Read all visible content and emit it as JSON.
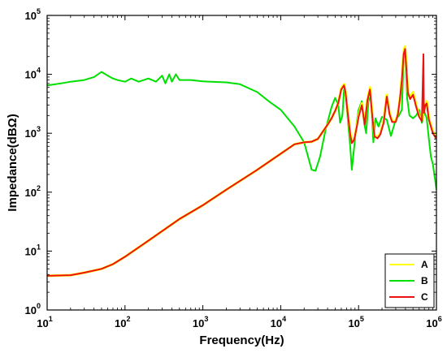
{
  "chart_data": {
    "type": "line",
    "xlabel": "Frequency(Hz)",
    "ylabel": "Impedance(dBΩ)",
    "xscale": "log",
    "yscale": "log",
    "xlim": [
      10,
      1000000
    ],
    "ylim": [
      1,
      100000
    ],
    "x_ticks": [
      {
        "base": "10",
        "exp": "1"
      },
      {
        "base": "10",
        "exp": "2"
      },
      {
        "base": "10",
        "exp": "3"
      },
      {
        "base": "10",
        "exp": "4"
      },
      {
        "base": "10",
        "exp": "5"
      },
      {
        "base": "10",
        "exp": "6"
      }
    ],
    "y_ticks": [
      {
        "base": "10",
        "exp": "0"
      },
      {
        "base": "10",
        "exp": "1"
      },
      {
        "base": "10",
        "exp": "2"
      },
      {
        "base": "10",
        "exp": "3"
      },
      {
        "base": "10",
        "exp": "4"
      },
      {
        "base": "10",
        "exp": "5"
      }
    ],
    "grid": false,
    "legend_position": "bottom-right",
    "series": [
      {
        "name": "A",
        "color": "#ffff00",
        "points": [
          [
            10,
            3.8
          ],
          [
            20,
            3.9
          ],
          [
            30,
            4.3
          ],
          [
            50,
            5
          ],
          [
            70,
            6
          ],
          [
            100,
            8
          ],
          [
            200,
            15
          ],
          [
            500,
            35
          ],
          [
            1000,
            60
          ],
          [
            2000,
            110
          ],
          [
            5000,
            240
          ],
          [
            10000,
            450
          ],
          [
            15000,
            650
          ],
          [
            20000,
            700
          ],
          [
            25000,
            720
          ],
          [
            30000,
            800
          ],
          [
            40000,
            1400
          ],
          [
            45000,
            1800
          ],
          [
            50000,
            2400
          ],
          [
            55000,
            3300
          ],
          [
            60000,
            5800
          ],
          [
            65000,
            6800
          ],
          [
            68000,
            5000
          ],
          [
            72000,
            2500
          ],
          [
            78000,
            1000
          ],
          [
            82000,
            700
          ],
          [
            88000,
            800
          ],
          [
            95000,
            1400
          ],
          [
            100000,
            2000
          ],
          [
            110000,
            3200
          ],
          [
            120000,
            1500
          ],
          [
            130000,
            3800
          ],
          [
            140000,
            6000
          ],
          [
            150000,
            2000
          ],
          [
            160000,
            900
          ],
          [
            175000,
            850
          ],
          [
            190000,
            1000
          ],
          [
            210000,
            1600
          ],
          [
            230000,
            4500
          ],
          [
            250000,
            2200
          ],
          [
            270000,
            1600
          ],
          [
            300000,
            1600
          ],
          [
            320000,
            2200
          ],
          [
            340000,
            4000
          ],
          [
            360000,
            9000
          ],
          [
            380000,
            25000
          ],
          [
            395000,
            30000
          ],
          [
            410000,
            15000
          ],
          [
            430000,
            5000
          ],
          [
            460000,
            4000
          ],
          [
            500000,
            5000
          ],
          [
            550000,
            3000
          ],
          [
            600000,
            2000
          ],
          [
            650000,
            1700
          ],
          [
            700000,
            2600
          ],
          [
            750000,
            3500
          ],
          [
            800000,
            1800
          ],
          [
            900000,
            1050
          ],
          [
            1000000,
            900
          ]
        ]
      },
      {
        "name": "B",
        "color": "#00e000",
        "points": [
          [
            10,
            6500
          ],
          [
            15,
            7000
          ],
          [
            20,
            7500
          ],
          [
            30,
            8000
          ],
          [
            40,
            9000
          ],
          [
            50,
            11000
          ],
          [
            60,
            9500
          ],
          [
            70,
            8500
          ],
          [
            80,
            8000
          ],
          [
            100,
            7500
          ],
          [
            120,
            8500
          ],
          [
            150,
            7500
          ],
          [
            200,
            8500
          ],
          [
            250,
            7500
          ],
          [
            300,
            9500
          ],
          [
            330,
            7000
          ],
          [
            370,
            10000
          ],
          [
            400,
            7500
          ],
          [
            450,
            10000
          ],
          [
            500,
            8000
          ],
          [
            700,
            8000
          ],
          [
            1000,
            7600
          ],
          [
            2000,
            7300
          ],
          [
            3000,
            6800
          ],
          [
            5000,
            5000
          ],
          [
            7000,
            3500
          ],
          [
            10000,
            2500
          ],
          [
            15000,
            1300
          ],
          [
            20000,
            700
          ],
          [
            25000,
            240
          ],
          [
            28000,
            230
          ],
          [
            32000,
            400
          ],
          [
            38000,
            1200
          ],
          [
            45000,
            2800
          ],
          [
            50000,
            4000
          ],
          [
            55000,
            3000
          ],
          [
            58000,
            1500
          ],
          [
            62000,
            2000
          ],
          [
            65000,
            5500
          ],
          [
            68000,
            5000
          ],
          [
            72000,
            2000
          ],
          [
            78000,
            600
          ],
          [
            82000,
            240
          ],
          [
            88000,
            600
          ],
          [
            95000,
            1600
          ],
          [
            100000,
            2500
          ],
          [
            110000,
            3500
          ],
          [
            118000,
            1500
          ],
          [
            125000,
            1000
          ],
          [
            135000,
            4000
          ],
          [
            145000,
            3500
          ],
          [
            155000,
            700
          ],
          [
            165000,
            1800
          ],
          [
            180000,
            1300
          ],
          [
            200000,
            1900
          ],
          [
            230000,
            1700
          ],
          [
            260000,
            900
          ],
          [
            300000,
            1700
          ],
          [
            330000,
            2000
          ],
          [
            360000,
            2500
          ],
          [
            380000,
            22000
          ],
          [
            400000,
            20000
          ],
          [
            420000,
            4000
          ],
          [
            450000,
            2000
          ],
          [
            500000,
            1800
          ],
          [
            550000,
            2000
          ],
          [
            600000,
            2500
          ],
          [
            650000,
            1500
          ],
          [
            700000,
            2300
          ],
          [
            750000,
            1800
          ],
          [
            800000,
            800
          ],
          [
            850000,
            400
          ],
          [
            900000,
            300
          ],
          [
            950000,
            180
          ],
          [
            1000000,
            110
          ]
        ]
      },
      {
        "name": "C",
        "color": "#ee1111",
        "points": [
          [
            10,
            3.8
          ],
          [
            20,
            3.9
          ],
          [
            30,
            4.3
          ],
          [
            50,
            5
          ],
          [
            70,
            6
          ],
          [
            100,
            8
          ],
          [
            200,
            15
          ],
          [
            500,
            35
          ],
          [
            1000,
            60
          ],
          [
            2000,
            110
          ],
          [
            5000,
            240
          ],
          [
            10000,
            450
          ],
          [
            15000,
            650
          ],
          [
            20000,
            700
          ],
          [
            25000,
            720
          ],
          [
            30000,
            800
          ],
          [
            40000,
            1400
          ],
          [
            45000,
            1800
          ],
          [
            50000,
            2400
          ],
          [
            55000,
            3300
          ],
          [
            60000,
            5500
          ],
          [
            65000,
            6500
          ],
          [
            68000,
            4800
          ],
          [
            72000,
            2400
          ],
          [
            78000,
            950
          ],
          [
            82000,
            680
          ],
          [
            88000,
            780
          ],
          [
            95000,
            1300
          ],
          [
            100000,
            1900
          ],
          [
            110000,
            3000
          ],
          [
            120000,
            1400
          ],
          [
            130000,
            3600
          ],
          [
            140000,
            5500
          ],
          [
            150000,
            1900
          ],
          [
            160000,
            880
          ],
          [
            175000,
            820
          ],
          [
            190000,
            950
          ],
          [
            210000,
            1500
          ],
          [
            230000,
            4200
          ],
          [
            250000,
            2100
          ],
          [
            270000,
            1550
          ],
          [
            300000,
            1550
          ],
          [
            320000,
            2100
          ],
          [
            340000,
            3800
          ],
          [
            360000,
            8000
          ],
          [
            380000,
            22000
          ],
          [
            395000,
            27000
          ],
          [
            410000,
            13000
          ],
          [
            430000,
            4800
          ],
          [
            460000,
            3800
          ],
          [
            500000,
            4500
          ],
          [
            550000,
            2800
          ],
          [
            600000,
            1900
          ],
          [
            650000,
            1600
          ],
          [
            680000,
            22000
          ],
          [
            690000,
            2200
          ],
          [
            720000,
            3000
          ],
          [
            750000,
            3200
          ],
          [
            800000,
            1700
          ],
          [
            900000,
            1000
          ],
          [
            1000000,
            800
          ]
        ]
      }
    ]
  }
}
